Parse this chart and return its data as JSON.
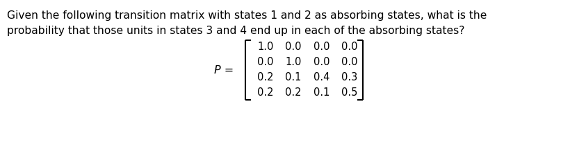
{
  "question_line1": "Given the following transition matrix with states 1 and 2 as absorbing states, what is the",
  "question_line2": "probability that those units in states 3 and 4 end up in each of the absorbing states?",
  "matrix_label": "P =",
  "matrix_rows": [
    [
      "1.0",
      "0.0",
      "0.0",
      "0.0"
    ],
    [
      "0.0",
      "1.0",
      "0.0",
      "0.0"
    ],
    [
      "0.2",
      "0.1",
      "0.4",
      "0.3"
    ],
    [
      "0.2",
      "0.2",
      "0.1",
      "0.5"
    ]
  ],
  "text_color": "#000000",
  "background_color": "#ffffff",
  "font_size_text": 11.2,
  "font_size_matrix": 10.5,
  "font_family": "DejaVu Sans",
  "bracket_lw": 1.5
}
